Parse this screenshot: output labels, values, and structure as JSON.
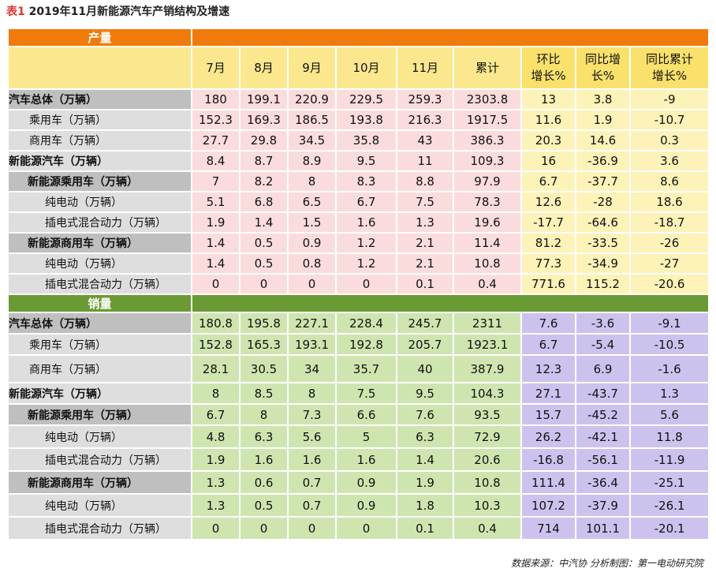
{
  "title": {
    "tag": "表1",
    "text": " 2019年11月新能源汽车产销结构及增速"
  },
  "sections": {
    "production": "产量",
    "sales": "销量"
  },
  "columns": [
    "7月",
    "8月",
    "9月",
    "10月",
    "11月",
    "累计"
  ],
  "pct_columns": [
    {
      "line1": "环比",
      "line2": "增长%"
    },
    {
      "line1": "同比增",
      "line2": "长%"
    },
    {
      "line1": "同比累计",
      "line2": "增长%"
    }
  ],
  "production_rows": [
    {
      "label": "汽车总体（万辆）",
      "values": [
        "180",
        "199.1",
        "220.9",
        "229.5",
        "259.3",
        "2303.8",
        "13",
        "3.8",
        "-9"
      ]
    },
    {
      "label": "乘用车（万辆）",
      "values": [
        "152.3",
        "169.3",
        "186.5",
        "193.8",
        "216.3",
        "1917.5",
        "11.6",
        "1.9",
        "-10.7"
      ]
    },
    {
      "label": "商用车（万辆）",
      "values": [
        "27.7",
        "29.8",
        "34.5",
        "35.8",
        "43",
        "386.3",
        "20.3",
        "14.6",
        "0.3"
      ]
    },
    {
      "label": "新能源汽车（万辆）",
      "values": [
        "8.4",
        "8.7",
        "8.9",
        "9.5",
        "11",
        "109.3",
        "16",
        "-36.9",
        "3.6"
      ]
    },
    {
      "label": "新能源乘用车（万辆）",
      "values": [
        "7",
        "8.2",
        "8",
        "8.3",
        "8.8",
        "97.9",
        "6.7",
        "-37.7",
        "8.6"
      ]
    },
    {
      "label": "纯电动（万辆）",
      "values": [
        "5.1",
        "6.8",
        "6.5",
        "6.7",
        "7.5",
        "78.3",
        "12.6",
        "-28",
        "18.6"
      ]
    },
    {
      "label": "插电式混合动力（万辆）",
      "values": [
        "1.9",
        "1.4",
        "1.5",
        "1.6",
        "1.3",
        "19.6",
        "-17.7",
        "-64.6",
        "-18.7"
      ]
    },
    {
      "label": "新能源商用车（万辆）",
      "values": [
        "1.4",
        "0.5",
        "0.9",
        "1.2",
        "2.1",
        "11.4",
        "81.2",
        "-33.5",
        "-26"
      ]
    },
    {
      "label": "纯电动（万辆）",
      "values": [
        "1.4",
        "0.5",
        "0.8",
        "1.2",
        "2.1",
        "10.8",
        "77.3",
        "-34.9",
        "-27"
      ]
    },
    {
      "label": "插电式混合动力（万辆）",
      "values": [
        "0",
        "0",
        "0",
        "0",
        "0.1",
        "0.4",
        "771.6",
        "115.2",
        "-20.6"
      ]
    }
  ],
  "sales_rows": [
    {
      "label": "汽车总体（万辆）",
      "values": [
        "180.8",
        "195.8",
        "227.1",
        "228.4",
        "245.7",
        "2311",
        "7.6",
        "-3.6",
        "-9.1"
      ]
    },
    {
      "label": "乘用车（万辆）",
      "values": [
        "152.8",
        "165.3",
        "193.1",
        "192.8",
        "205.7",
        "1923.1",
        "6.7",
        "-5.4",
        "-10.5"
      ]
    },
    {
      "label": "商用车（万辆）",
      "values": [
        "28.1",
        "30.5",
        "34",
        "35.7",
        "40",
        "387.9",
        "12.3",
        "6.9",
        "-1.6"
      ]
    },
    {
      "label": "新能源汽车（万辆）",
      "values": [
        "8",
        "8.5",
        "8",
        "7.5",
        "9.5",
        "104.3",
        "27.1",
        "-43.7",
        "1.3"
      ]
    },
    {
      "label": "新能源乘用车（万辆）",
      "values": [
        "6.7",
        "8",
        "7.3",
        "6.6",
        "7.6",
        "93.5",
        "15.7",
        "-45.2",
        "5.6"
      ]
    },
    {
      "label": "纯电动（万辆）",
      "values": [
        "4.8",
        "6.3",
        "5.6",
        "5",
        "6.3",
        "72.9",
        "26.2",
        "-42.1",
        "11.8"
      ]
    },
    {
      "label": "插电式混合动力（万辆）",
      "values": [
        "1.9",
        "1.6",
        "1.6",
        "1.6",
        "1.4",
        "20.6",
        "-16.8",
        "-56.1",
        "-11.9"
      ]
    },
    {
      "label": "新能源商用车（万辆）",
      "values": [
        "1.3",
        "0.6",
        "0.7",
        "0.9",
        "1.9",
        "10.8",
        "111.4",
        "-36.4",
        "-25.1"
      ]
    },
    {
      "label": "纯电动（万辆）",
      "values": [
        "1.3",
        "0.5",
        "0.7",
        "0.9",
        "1.8",
        "10.3",
        "107.2",
        "-37.9",
        "-26.1"
      ]
    },
    {
      "label": "插电式混合动力（万辆）",
      "values": [
        "0",
        "0",
        "0",
        "0",
        "0.1",
        "0.4",
        "714",
        "101.1",
        "-20.1"
      ]
    }
  ],
  "source": "数据来源：中汽协  分析制图：第一电动研究院"
}
